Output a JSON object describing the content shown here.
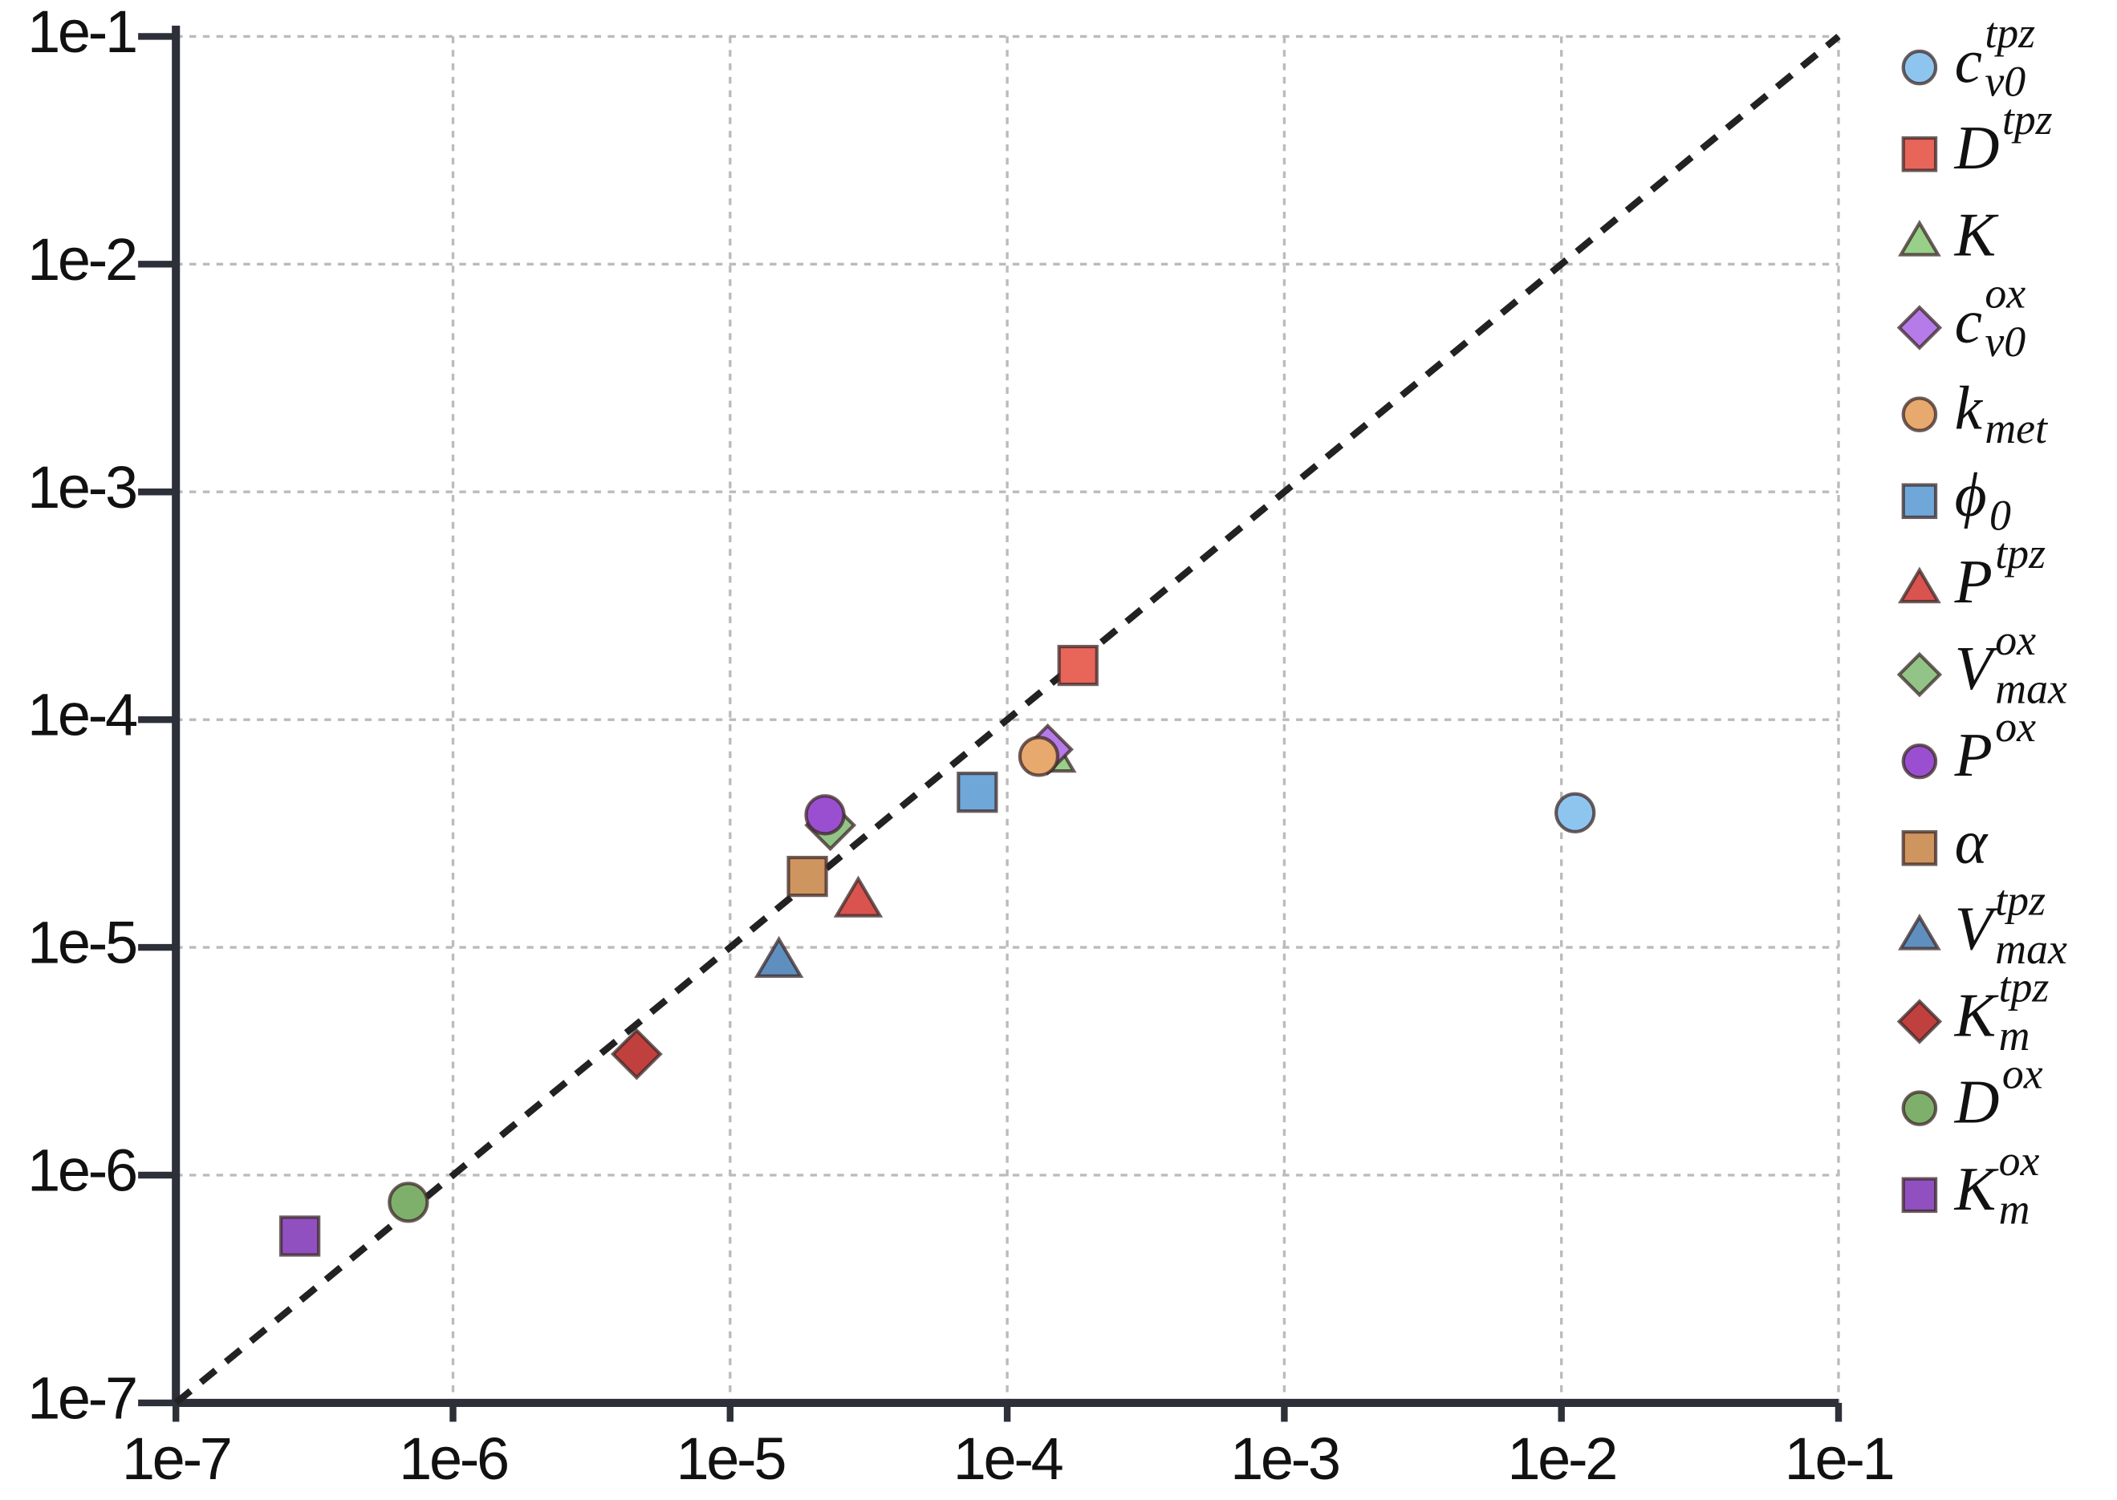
{
  "chart_data": {
    "type": "scatter",
    "log_x": true,
    "log_y": true,
    "grid": true,
    "diagonal": true,
    "xlim": [
      1e-07,
      0.1
    ],
    "ylim": [
      1e-07,
      0.1
    ],
    "xticks": [
      {
        "value": 1e-07,
        "label": "1e-7"
      },
      {
        "value": 1e-06,
        "label": "1e-6"
      },
      {
        "value": 1e-05,
        "label": "1e-5"
      },
      {
        "value": 0.0001,
        "label": "1e-4"
      },
      {
        "value": 0.001,
        "label": "1e-3"
      },
      {
        "value": 0.01,
        "label": "1e-2"
      },
      {
        "value": 0.1,
        "label": "1e-1"
      }
    ],
    "yticks": [
      {
        "value": 1e-07,
        "label": "1e-7"
      },
      {
        "value": 1e-06,
        "label": "1e-6"
      },
      {
        "value": 1e-05,
        "label": "1e-5"
      },
      {
        "value": 0.0001,
        "label": "1e-4"
      },
      {
        "value": 0.001,
        "label": "1e-3"
      },
      {
        "value": 0.01,
        "label": "1e-2"
      },
      {
        "value": 0.1,
        "label": "1e-1"
      }
    ],
    "legend_position": "right",
    "series": [
      {
        "name": "c",
        "sub": "v0",
        "sup": "tpz",
        "marker": "circle",
        "color": "#8ec5ef",
        "x": [
          0.0112
        ],
        "y": [
          3.9e-05
        ]
      },
      {
        "name": "D",
        "sup": "tpz",
        "marker": "square",
        "color": "#e8655a",
        "x": [
          0.00018
        ],
        "y": [
          0.000173
        ]
      },
      {
        "name": "K",
        "marker": "triangle",
        "color": "#98d08a",
        "x": [
          0.000145
        ],
        "y": [
          7e-05
        ]
      },
      {
        "name": "c",
        "sub": "v0",
        "sup": "ox",
        "marker": "diamond",
        "color": "#b57be8",
        "x": [
          0.00014
        ],
        "y": [
          7.4e-05
        ]
      },
      {
        "name": "k",
        "sub": "met",
        "marker": "circle",
        "color": "#e8a96e",
        "x": [
          0.00013
        ],
        "y": [
          6.9e-05
        ]
      },
      {
        "name": "ϕ",
        "sub": "0",
        "marker": "square",
        "color": "#6fa7d8",
        "x": [
          7.8e-05
        ],
        "y": [
          4.8e-05
        ]
      },
      {
        "name": "P",
        "sup": "tpz",
        "marker": "triangle",
        "color": "#d9534f",
        "x": [
          2.9e-05
        ],
        "y": [
          1.62e-05
        ]
      },
      {
        "name": "V",
        "sub": "max",
        "sup": "ox",
        "marker": "diamond",
        "color": "#92c488",
        "x": [
          2.3e-05
        ],
        "y": [
          3.44e-05
        ]
      },
      {
        "name": "P",
        "sup": "ox",
        "marker": "circle",
        "color": "#9a4fd0",
        "x": [
          2.2e-05
        ],
        "y": [
          3.82e-05
        ]
      },
      {
        "name": "α",
        "marker": "square",
        "color": "#cf955e",
        "x": [
          1.9e-05
        ],
        "y": [
          2.05e-05
        ]
      },
      {
        "name": "V",
        "sub": "max",
        "sup": "tpz",
        "marker": "triangle",
        "color": "#5f8fbf",
        "x": [
          1.5e-05
        ],
        "y": [
          8.8e-06
        ]
      },
      {
        "name": "K",
        "sub": "m",
        "sup": "tpz",
        "marker": "diamond",
        "color": "#c0403d",
        "x": [
          4.6e-06
        ],
        "y": [
          3.4e-06
        ]
      },
      {
        "name": "D",
        "sup": "ox",
        "marker": "circle",
        "color": "#7fb06b",
        "x": [
          6.9e-07
        ],
        "y": [
          7.6e-07
        ]
      },
      {
        "name": "K",
        "sub": "m",
        "sup": "ox",
        "marker": "square",
        "color": "#9050c0",
        "x": [
          2.8e-07
        ],
        "y": [
          5.4e-07
        ]
      }
    ]
  }
}
